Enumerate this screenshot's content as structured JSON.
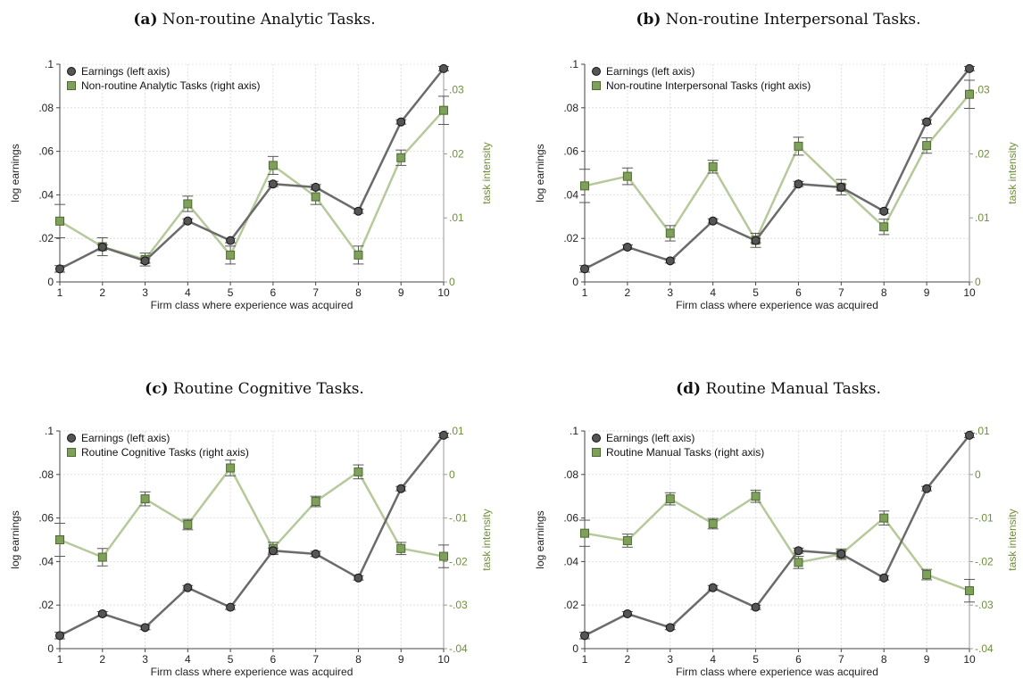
{
  "colors": {
    "earnings_line": "#6b6b6b",
    "earnings_marker": "#555555",
    "task_line": "#b5c99a",
    "task_marker": "#7fa05a",
    "right_axis": "#6e8f3a",
    "grid": "#d9d9d9",
    "error_bar": "#555555"
  },
  "icons": {
    "earnings_marker": "circle-marker-icon",
    "task_marker": "square-marker-icon"
  },
  "chart_data": [
    {
      "type": "line",
      "panel_letter": "(a)",
      "title": "Non-routine Analytic Tasks.",
      "xlabel": "Firm class where experience was acquired",
      "ylabel": "log earnings",
      "y2label": "task intensity",
      "x": [
        1,
        2,
        3,
        4,
        5,
        6,
        7,
        8,
        9,
        10
      ],
      "ylim": [
        0,
        0.1
      ],
      "yticks": [
        0,
        0.02,
        0.04,
        0.06,
        0.08,
        0.1
      ],
      "ytick_labels": [
        "0",
        ".02",
        ".04",
        ".06",
        ".08",
        ".1"
      ],
      "y2lim": [
        0,
        0.034
      ],
      "y2ticks": [
        0,
        0.01,
        0.02,
        0.03
      ],
      "y2tick_labels": [
        "0",
        ".01",
        ".02",
        ".03"
      ],
      "grid": true,
      "legend_position": "top-left",
      "series": [
        {
          "name": "Earnings (left axis)",
          "axis": "left",
          "marker": "circle",
          "values": [
            0.006,
            0.016,
            0.0097,
            0.028,
            0.019,
            0.045,
            0.0435,
            0.0325,
            0.0735,
            0.098
          ],
          "err": [
            0.0015,
            0.001,
            0.001,
            0.001,
            0.001,
            0.0012,
            0.0012,
            0.001,
            0.001,
            0.001
          ]
        },
        {
          "name": "Non-routine Analytic Tasks (right axis)",
          "axis": "right",
          "marker": "square",
          "values": [
            0.0095,
            0.0055,
            0.0035,
            0.0122,
            0.0042,
            0.0182,
            0.0133,
            0.0042,
            0.0194,
            0.0268
          ],
          "err": [
            0.0026,
            0.0014,
            0.001,
            0.0012,
            0.0014,
            0.0014,
            0.0012,
            0.0014,
            0.0012,
            0.0022
          ]
        }
      ]
    },
    {
      "type": "line",
      "panel_letter": "(b)",
      "title": "Non-routine Interpersonal Tasks.",
      "xlabel": "Firm class where experience was acquired",
      "ylabel": "log earnings",
      "y2label": "task intensity",
      "x": [
        1,
        2,
        3,
        4,
        5,
        6,
        7,
        8,
        9,
        10
      ],
      "ylim": [
        0,
        0.1
      ],
      "yticks": [
        0,
        0.02,
        0.04,
        0.06,
        0.08,
        0.1
      ],
      "ytick_labels": [
        "0",
        ".02",
        ".04",
        ".06",
        ".08",
        ".1"
      ],
      "y2lim": [
        0,
        0.034
      ],
      "y2ticks": [
        0,
        0.01,
        0.02,
        0.03
      ],
      "y2tick_labels": [
        "0",
        ".01",
        ".02",
        ".03"
      ],
      "grid": true,
      "legend_position": "top-left",
      "series": [
        {
          "name": "Earnings (left axis)",
          "axis": "left",
          "marker": "circle",
          "values": [
            0.006,
            0.016,
            0.0097,
            0.028,
            0.019,
            0.045,
            0.0435,
            0.0325,
            0.0735,
            0.098
          ],
          "err": [
            0.0015,
            0.001,
            0.001,
            0.001,
            0.001,
            0.0012,
            0.0012,
            0.001,
            0.001,
            0.001
          ]
        },
        {
          "name": "Non-routine Interpersonal Tasks (right axis)",
          "axis": "right",
          "marker": "square",
          "values": [
            0.015,
            0.0165,
            0.0076,
            0.018,
            0.0065,
            0.0212,
            0.0148,
            0.0086,
            0.0213,
            0.0293
          ],
          "err": [
            0.0026,
            0.0013,
            0.0012,
            0.001,
            0.0011,
            0.0014,
            0.0012,
            0.0012,
            0.0012,
            0.0022
          ]
        }
      ]
    },
    {
      "type": "line",
      "panel_letter": "(c)",
      "title": "Routine Cognitive Tasks.",
      "xlabel": "Firm class where experience was acquired",
      "ylabel": "log earnings",
      "y2label": "task intensity",
      "x": [
        1,
        2,
        3,
        4,
        5,
        6,
        7,
        8,
        9,
        10
      ],
      "ylim": [
        0,
        0.1
      ],
      "yticks": [
        0,
        0.02,
        0.04,
        0.06,
        0.08,
        0.1
      ],
      "ytick_labels": [
        "0",
        ".02",
        ".04",
        ".06",
        ".08",
        ".1"
      ],
      "y2lim": [
        -0.04,
        0.01
      ],
      "y2ticks": [
        -0.04,
        -0.03,
        -0.02,
        -0.01,
        0,
        0.01
      ],
      "y2tick_labels": [
        "-.04",
        "-.03",
        "-.02",
        "-.01",
        "0",
        ".01"
      ],
      "grid": true,
      "legend_position": "top-left",
      "series": [
        {
          "name": "Earnings (left axis)",
          "axis": "left",
          "marker": "circle",
          "values": [
            0.006,
            0.016,
            0.0097,
            0.028,
            0.019,
            0.045,
            0.0435,
            0.0325,
            0.0735,
            0.098
          ],
          "err": [
            0.0015,
            0.001,
            0.001,
            0.001,
            0.001,
            0.0012,
            0.0012,
            0.001,
            0.001,
            0.001
          ]
        },
        {
          "name": "Routine Cognitive Tasks (right axis)",
          "axis": "right",
          "marker": "square",
          "values": [
            -0.015,
            -0.019,
            -0.0056,
            -0.0115,
            0.0015,
            -0.017,
            -0.0062,
            0.0006,
            -0.017,
            -0.0188
          ],
          "err": [
            0.0038,
            0.002,
            0.0016,
            0.0012,
            0.0018,
            0.0014,
            0.0012,
            0.0016,
            0.0014,
            0.0026
          ]
        }
      ]
    },
    {
      "type": "line",
      "panel_letter": "(d)",
      "title": "Routine Manual Tasks.",
      "xlabel": "Firm class where experience was acquired",
      "ylabel": "log earnings",
      "y2label": "task intensity",
      "x": [
        1,
        2,
        3,
        4,
        5,
        6,
        7,
        8,
        9,
        10
      ],
      "ylim": [
        0,
        0.1
      ],
      "yticks": [
        0,
        0.02,
        0.04,
        0.06,
        0.08,
        0.1
      ],
      "ytick_labels": [
        "0",
        ".02",
        ".04",
        ".06",
        ".08",
        ".1"
      ],
      "y2lim": [
        -0.04,
        0.01
      ],
      "y2ticks": [
        -0.04,
        -0.03,
        -0.02,
        -0.01,
        0,
        0.01
      ],
      "y2tick_labels": [
        "-.04",
        "-.03",
        "-.02",
        "-.01",
        "0",
        ".01"
      ],
      "grid": true,
      "legend_position": "top-left",
      "series": [
        {
          "name": "Earnings (left axis)",
          "axis": "left",
          "marker": "circle",
          "values": [
            0.006,
            0.016,
            0.0097,
            0.028,
            0.019,
            0.045,
            0.0435,
            0.0325,
            0.0735,
            0.098
          ],
          "err": [
            0.0015,
            0.001,
            0.001,
            0.001,
            0.001,
            0.0012,
            0.0012,
            0.001,
            0.001,
            0.001
          ]
        },
        {
          "name": "Routine Manual Tasks (right axis)",
          "axis": "right",
          "marker": "square",
          "values": [
            -0.0135,
            -0.0152,
            -0.0056,
            -0.0113,
            -0.005,
            -0.0202,
            -0.0183,
            -0.01,
            -0.023,
            -0.0267
          ],
          "err": [
            0.003,
            0.0015,
            0.0014,
            0.0012,
            0.0014,
            0.0014,
            0.0012,
            0.0016,
            0.0012,
            0.0026
          ]
        }
      ]
    }
  ]
}
